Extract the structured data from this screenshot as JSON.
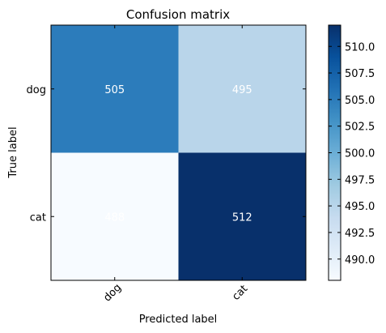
{
  "chart_data": {
    "type": "heatmap",
    "title": "Confusion matrix",
    "xlabel": "Predicted label",
    "ylabel": "True label",
    "x_categories": [
      "dog",
      "cat"
    ],
    "y_categories": [
      "dog",
      "cat"
    ],
    "values": [
      [
        505,
        495
      ],
      [
        488,
        512
      ]
    ],
    "cell_labels": [
      [
        "505",
        "495"
      ],
      [
        "488",
        "512"
      ]
    ],
    "colormap": "Blues",
    "colorbar": {
      "min": 488,
      "max": 512,
      "ticks": [
        490.0,
        492.5,
        495.0,
        497.5,
        500.0,
        502.5,
        505.0,
        507.5,
        510.0
      ],
      "tick_labels": [
        "490.0",
        "492.5",
        "495.0",
        "497.5",
        "500.0",
        "502.5",
        "505.0",
        "507.5",
        "510.0"
      ]
    },
    "cell_text_color": "#ffffff",
    "x_tick_rotation_deg": 45
  }
}
